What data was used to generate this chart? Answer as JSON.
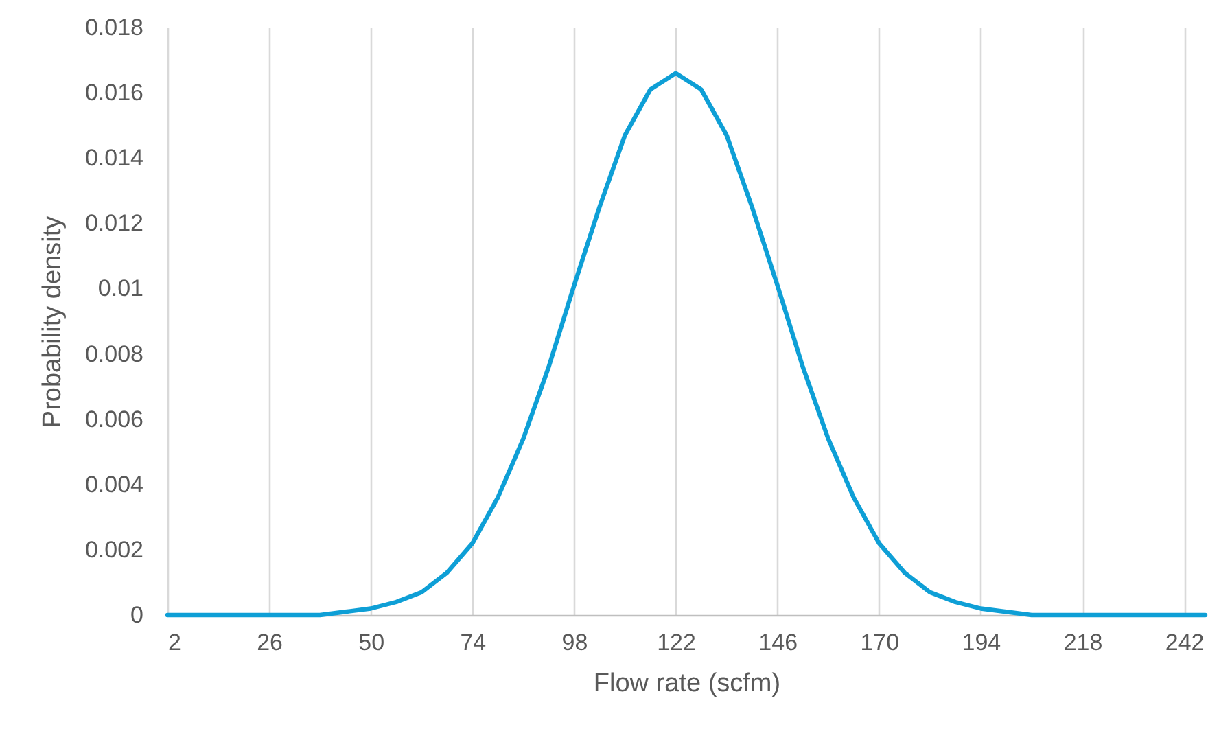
{
  "chart_data": {
    "type": "line",
    "xlabel": "Flow rate (scfm)",
    "ylabel": "Probability density",
    "x": [
      2,
      14,
      26,
      38,
      44,
      50,
      56,
      62,
      68,
      74,
      80,
      86,
      92,
      98,
      104,
      110,
      116,
      122,
      128,
      134,
      140,
      146,
      152,
      158,
      164,
      170,
      176,
      182,
      188,
      194,
      200,
      206,
      218,
      230,
      242,
      247
    ],
    "series": [
      {
        "color": "#0e9fd6",
        "values": [
          0,
          0,
          0,
          0,
          0.0001,
          0.0002,
          0.0004,
          0.0007,
          0.0013,
          0.0022,
          0.0036,
          0.0054,
          0.0076,
          0.0101,
          0.0125,
          0.0147,
          0.0161,
          0.0166,
          0.0161,
          0.0147,
          0.0125,
          0.0101,
          0.0076,
          0.0054,
          0.0036,
          0.0022,
          0.0013,
          0.0007,
          0.0004,
          0.0002,
          0.0001,
          0,
          0,
          0,
          0,
          0
        ]
      }
    ],
    "xlim": [
      2,
      247
    ],
    "xticks": [
      2,
      26,
      50,
      74,
      98,
      122,
      146,
      170,
      194,
      218,
      242
    ],
    "ylim": [
      0,
      0.018
    ],
    "yticks": [
      0,
      0.002,
      0.004,
      0.006,
      0.008,
      0.01,
      0.012,
      0.014,
      0.016,
      0.018
    ],
    "grid": "x",
    "marker": "none",
    "line_style": "solid",
    "legend": false
  }
}
